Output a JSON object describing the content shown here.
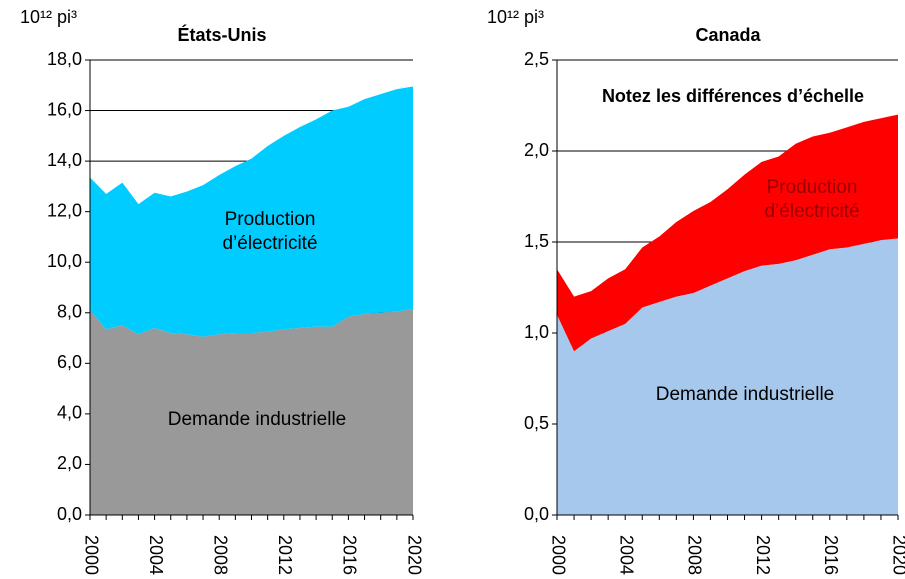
{
  "chart_data": [
    {
      "type": "stacked_area",
      "title": "États-Unis",
      "y_unit": "10¹² pi³",
      "x": [
        2000,
        2001,
        2002,
        2003,
        2004,
        2005,
        2006,
        2007,
        2008,
        2009,
        2010,
        2011,
        2012,
        2013,
        2014,
        2015,
        2016,
        2017,
        2018,
        2019,
        2020
      ],
      "series": [
        {
          "name": "Demande industrielle",
          "color": "#999999",
          "values": [
            8.1,
            7.35,
            7.5,
            7.15,
            7.4,
            7.2,
            7.15,
            7.05,
            7.15,
            7.2,
            7.2,
            7.25,
            7.35,
            7.4,
            7.45,
            7.45,
            7.85,
            7.95,
            8.0,
            8.05,
            8.15
          ]
        },
        {
          "name": "Production d’électricité",
          "color": "#00ccff",
          "values": [
            5.25,
            5.35,
            5.65,
            5.15,
            5.35,
            5.4,
            5.65,
            6.0,
            6.3,
            6.6,
            6.9,
            7.35,
            7.65,
            7.95,
            8.2,
            8.55,
            8.3,
            8.5,
            8.65,
            8.8,
            8.8
          ]
        }
      ],
      "xlim": [
        2000,
        2020
      ],
      "xticks": [
        2000,
        2004,
        2008,
        2012,
        2016,
        2020
      ],
      "ylim": [
        0,
        18
      ],
      "yticks": [
        {
          "value": 0,
          "label": "0,0"
        },
        {
          "value": 2,
          "label": "2,0"
        },
        {
          "value": 4,
          "label": "4,0"
        },
        {
          "value": 6,
          "label": "6,0"
        },
        {
          "value": 8,
          "label": "8,0"
        },
        {
          "value": 10,
          "label": "10,0"
        },
        {
          "value": 12,
          "label": "12,0"
        },
        {
          "value": 14,
          "label": "14,0"
        },
        {
          "value": 16,
          "label": "16,0"
        },
        {
          "value": 18,
          "label": "18,0"
        }
      ],
      "grid": true
    },
    {
      "type": "stacked_area",
      "title": "Canada",
      "y_unit": "10¹² pi³",
      "annotation": "Notez les différences d’échelle",
      "x": [
        2000,
        2001,
        2002,
        2003,
        2004,
        2005,
        2006,
        2007,
        2008,
        2009,
        2010,
        2011,
        2012,
        2013,
        2014,
        2015,
        2016,
        2017,
        2018,
        2019,
        2020
      ],
      "series": [
        {
          "name": "Demande industrielle",
          "color": "#a6c8ec",
          "values": [
            1.1,
            0.9,
            0.97,
            1.01,
            1.05,
            1.14,
            1.17,
            1.2,
            1.22,
            1.26,
            1.3,
            1.34,
            1.37,
            1.38,
            1.4,
            1.43,
            1.46,
            1.47,
            1.49,
            1.51,
            1.52
          ]
        },
        {
          "name": "Production d’électricité",
          "color": "#ff0000",
          "values": [
            0.25,
            0.3,
            0.26,
            0.29,
            0.3,
            0.33,
            0.36,
            0.41,
            0.45,
            0.46,
            0.49,
            0.53,
            0.57,
            0.59,
            0.64,
            0.65,
            0.64,
            0.66,
            0.67,
            0.67,
            0.68
          ]
        }
      ],
      "xlim": [
        2000,
        2020
      ],
      "xticks": [
        2000,
        2004,
        2008,
        2012,
        2016,
        2020
      ],
      "ylim": [
        0,
        2.5
      ],
      "yticks": [
        {
          "value": 0,
          "label": "0,0"
        },
        {
          "value": 0.5,
          "label": "0,5"
        },
        {
          "value": 1,
          "label": "1,0"
        },
        {
          "value": 1.5,
          "label": "1,5"
        },
        {
          "value": 2,
          "label": "2,0"
        },
        {
          "value": 2.5,
          "label": "2,5"
        }
      ],
      "grid": true
    }
  ]
}
